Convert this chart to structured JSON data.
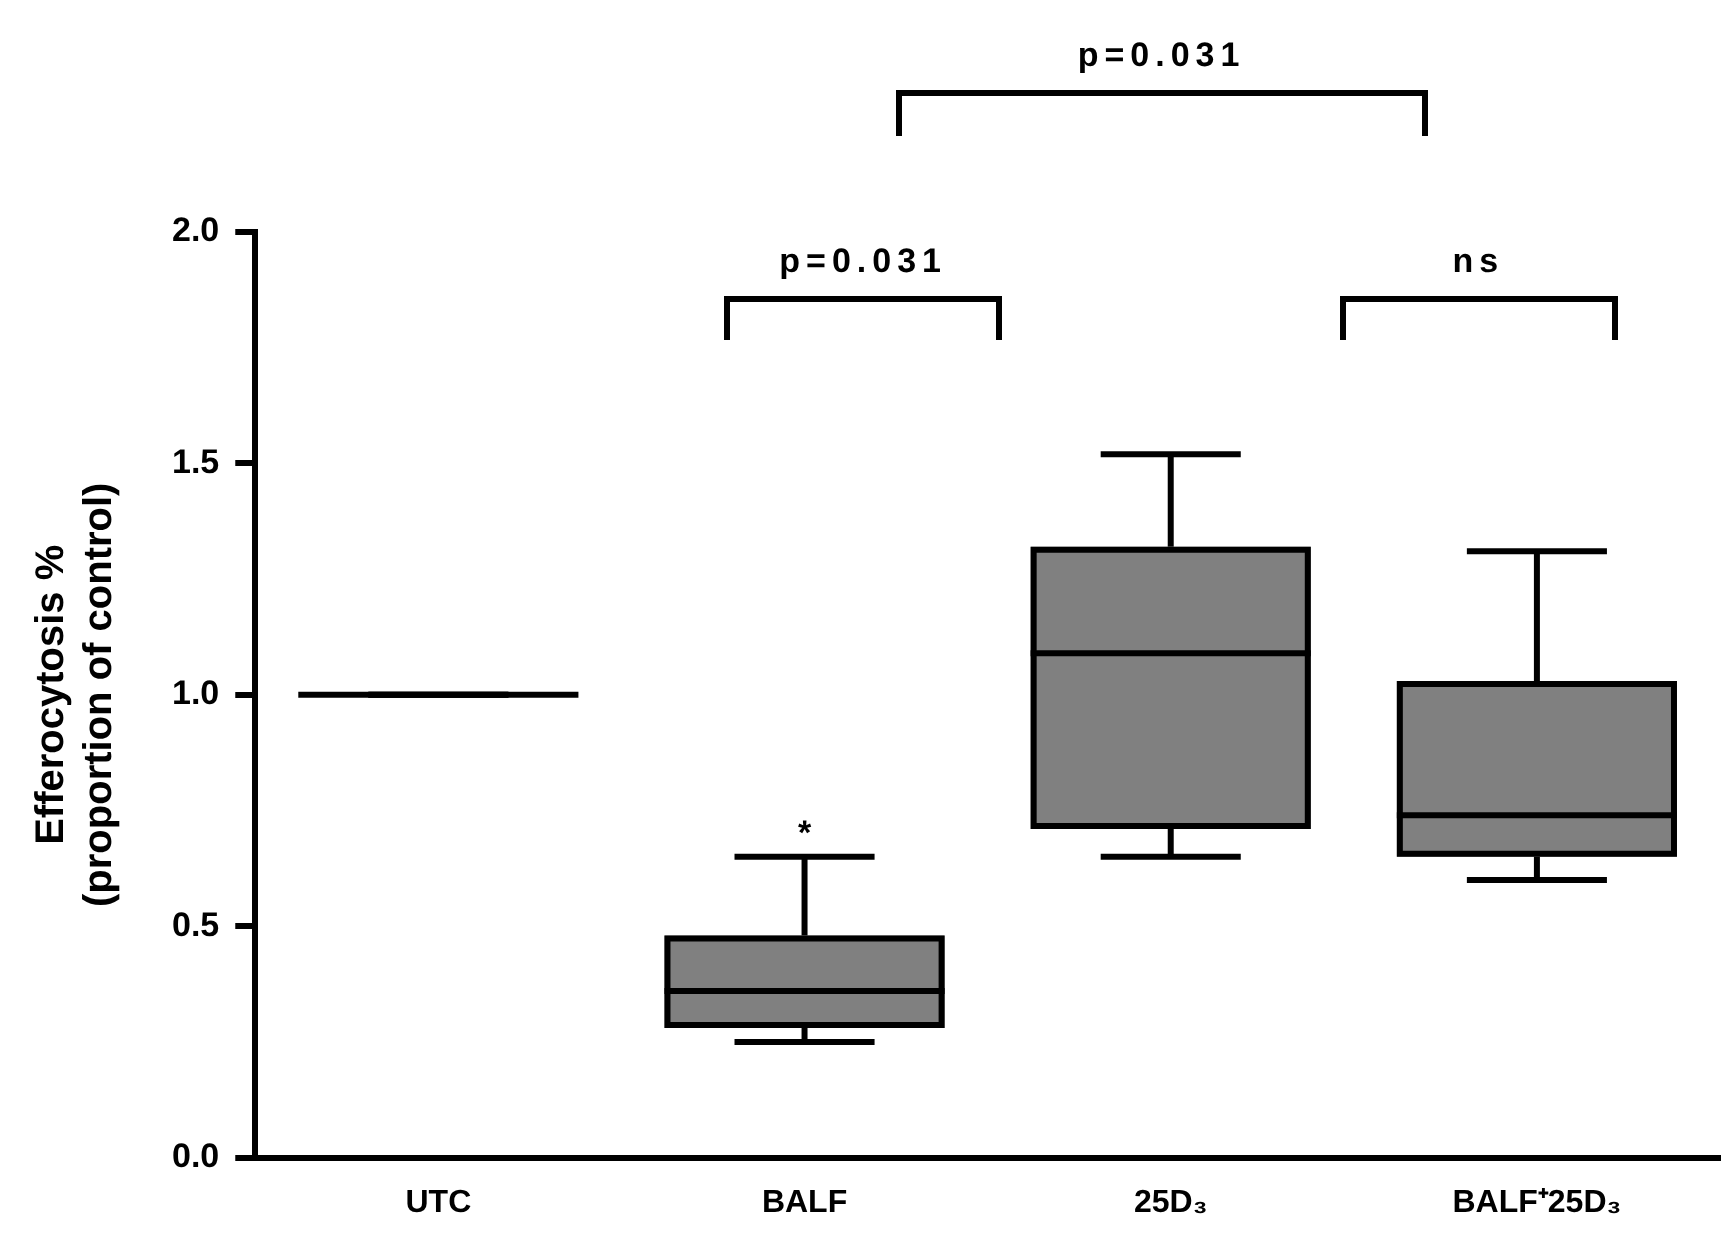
{
  "chart_data": {
    "type": "box",
    "ylabel": "Efferocytosis %\n(proportion of control)",
    "categories": [
      "UTC",
      "BALF",
      "25D₃",
      "BALF⁺25D₃"
    ],
    "boxes": [
      {
        "low": 1.0,
        "q1": 1.0,
        "median": 1.0,
        "q3": 1.0,
        "high": 1.0
      },
      {
        "low": 0.25,
        "q1": 0.28,
        "median": 0.36,
        "q3": 0.48,
        "high": 0.65
      },
      {
        "low": 0.65,
        "q1": 0.71,
        "median": 1.09,
        "q3": 1.32,
        "high": 1.52
      },
      {
        "low": 0.6,
        "q1": 0.65,
        "median": 0.74,
        "q3": 1.03,
        "high": 1.31
      }
    ],
    "colors": [
      "#000000",
      "#808080",
      "#808080",
      "#808080"
    ],
    "ylim": [
      0,
      2
    ],
    "yticks": [
      {
        "value": 0,
        "label": "0.0"
      },
      {
        "value": 0.5,
        "label": "0.5"
      },
      {
        "value": 1,
        "label": "1.0"
      },
      {
        "value": 1.5,
        "label": "1.5"
      },
      {
        "value": 2,
        "label": "2.0"
      }
    ],
    "grid": false,
    "legend": false,
    "annotations": [
      "p=0.031",
      "p=0.031",
      "ns",
      "*"
    ]
  }
}
